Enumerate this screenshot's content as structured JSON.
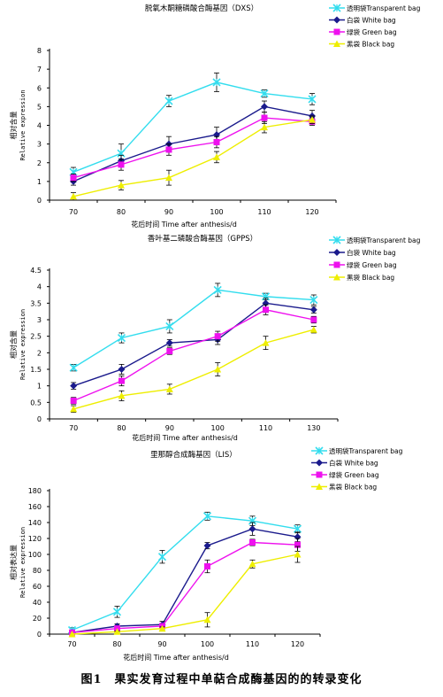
{
  "caption": "图1　果实发育过程中单萜合成酶基因的的转录变化",
  "colors": {
    "transparent": "#33ddee",
    "white": "#1a1a8c",
    "green": "#ee11ee",
    "black": "#eeee00",
    "axis": "#000000"
  },
  "chart_data": [
    {
      "type": "line",
      "title": "脱氧木酮糖磷酸合酶基因（DXS）",
      "xlabel": "花后时间 Time after anthesis/d",
      "ylabel_cn": "相对含量",
      "ylabel_en": "Relative expression",
      "ylim": [
        0,
        8
      ],
      "yticks": [
        "0",
        "1",
        "2",
        "3",
        "4",
        "5",
        "6",
        "7",
        "8"
      ],
      "categories": [
        "70",
        "80",
        "90",
        "100",
        "110",
        "120"
      ],
      "legend_position": "top-right",
      "series": [
        {
          "key": "transparent",
          "name": "透明袋Transparent bag",
          "marker": "x",
          "values": [
            1.5,
            2.5,
            5.3,
            6.3,
            5.7,
            5.4
          ],
          "errors": [
            0.25,
            0.5,
            0.3,
            0.5,
            0.2,
            0.3
          ]
        },
        {
          "key": "white",
          "name": "白袋 White bag",
          "marker": "diamond",
          "values": [
            1.0,
            2.1,
            3.0,
            3.5,
            5.0,
            4.5
          ],
          "errors": [
            0.2,
            0.3,
            0.4,
            0.4,
            0.3,
            0.3
          ]
        },
        {
          "key": "green",
          "name": "绿袋 Green bag",
          "marker": "square",
          "values": [
            1.2,
            1.9,
            2.7,
            3.1,
            4.4,
            4.2
          ],
          "errors": [
            0.2,
            0.3,
            0.3,
            0.3,
            0.3,
            0.2
          ]
        },
        {
          "key": "black",
          "name": "黑袋 Black bag",
          "marker": "triangle",
          "values": [
            0.2,
            0.8,
            1.2,
            2.3,
            3.9,
            4.3
          ],
          "errors": [
            0.2,
            0.25,
            0.4,
            0.3,
            0.3,
            0.2
          ]
        }
      ]
    },
    {
      "type": "line",
      "title": "香叶基二磷酸合酶基因（GPPS）",
      "xlabel": "花后时间 Time after anthesis/d",
      "ylabel_cn": "相对含量",
      "ylabel_en": "Relative expression",
      "ylim": [
        0,
        4.5
      ],
      "yticks": [
        "0",
        "0.5",
        "1",
        "1.5",
        "2",
        "2.5",
        "3",
        "3.5",
        "4",
        "4.5"
      ],
      "categories": [
        "70",
        "80",
        "90",
        "100",
        "110",
        "130"
      ],
      "legend_position": "top-right",
      "series": [
        {
          "key": "transparent",
          "name": "透明袋Transparent bag",
          "marker": "x",
          "values": [
            1.55,
            2.45,
            2.8,
            3.9,
            3.7,
            3.6
          ],
          "errors": [
            0.1,
            0.15,
            0.2,
            0.2,
            0.1,
            0.15
          ]
        },
        {
          "key": "white",
          "name": "白袋 White bag",
          "marker": "diamond",
          "values": [
            1.0,
            1.5,
            2.3,
            2.4,
            3.5,
            3.3
          ],
          "errors": [
            0.1,
            0.15,
            0.1,
            0.15,
            0.15,
            0.1
          ]
        },
        {
          "key": "green",
          "name": "绿袋 Green bag",
          "marker": "square",
          "values": [
            0.55,
            1.15,
            2.05,
            2.5,
            3.3,
            3.0
          ],
          "errors": [
            0.1,
            0.15,
            0.1,
            0.15,
            0.15,
            0.1
          ]
        },
        {
          "key": "black",
          "name": "黑袋 Black bag",
          "marker": "triangle",
          "values": [
            0.3,
            0.7,
            0.9,
            1.5,
            2.3,
            2.7
          ],
          "errors": [
            0.1,
            0.15,
            0.15,
            0.2,
            0.2,
            0.1
          ]
        }
      ]
    },
    {
      "type": "line",
      "title": "里那醇合成酶基因（LIS）",
      "xlabel": "花后时间 Time after anthesis/d",
      "ylabel_cn": "相对表达量",
      "ylabel_en": "Relative expression",
      "ylim": [
        0,
        180
      ],
      "yticks": [
        "0",
        "20",
        "40",
        "60",
        "80",
        "100",
        "120",
        "140",
        "160",
        "180"
      ],
      "categories": [
        "70",
        "80",
        "90",
        "100",
        "110",
        "120"
      ],
      "legend_position": "top-right",
      "series": [
        {
          "key": "transparent",
          "name": "透明袋Transparent bag",
          "marker": "x",
          "values": [
            5,
            28,
            97,
            148,
            142,
            132
          ],
          "errors": [
            3,
            7,
            8,
            5,
            6,
            5
          ]
        },
        {
          "key": "white",
          "name": "白袋 White bag",
          "marker": "diamond",
          "values": [
            2,
            10,
            12,
            111,
            132,
            122
          ],
          "errors": [
            2,
            3,
            4,
            4,
            8,
            6
          ]
        },
        {
          "key": "green",
          "name": "绿袋 Green bag",
          "marker": "square",
          "values": [
            2,
            7,
            10,
            85,
            115,
            112
          ],
          "errors": [
            2,
            2,
            3,
            8,
            4,
            8
          ]
        },
        {
          "key": "black",
          "name": "黑袋 Black bag",
          "marker": "triangle",
          "values": [
            0,
            3,
            7,
            18,
            88,
            100
          ],
          "errors": [
            0,
            1,
            2,
            9,
            5,
            10
          ]
        }
      ]
    }
  ]
}
